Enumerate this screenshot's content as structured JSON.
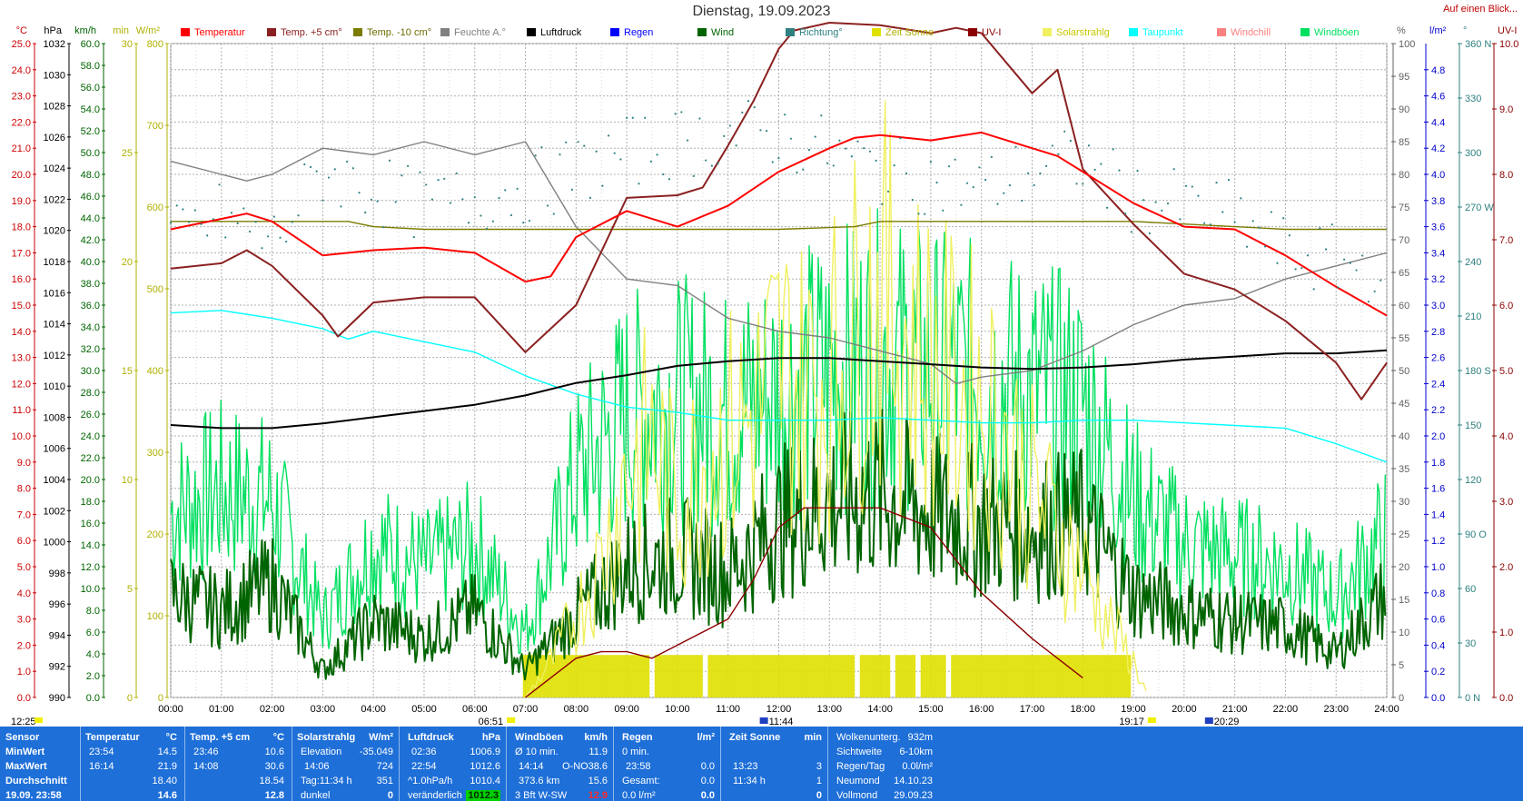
{
  "header": {
    "title": "Dienstag, 19.09.2023",
    "quick_link": "Auf einen Blick..."
  },
  "legend": [
    {
      "label": "Temperatur",
      "color": "#ff0000"
    },
    {
      "label": "Temp. +5 cm°",
      "color": "#8b2020"
    },
    {
      "label": "Temp. -10 cm°",
      "color": "#7b7b00"
    },
    {
      "label": "Feuchte A.°",
      "color": "#808080"
    },
    {
      "label": "Luftdruck",
      "color": "#000000"
    },
    {
      "label": "Regen",
      "color": "#0000ff"
    },
    {
      "label": "Wind",
      "color": "#006400"
    },
    {
      "label": "Richtung°",
      "color": "#2f8080"
    },
    {
      "label": "Zeit Sonne",
      "color": "#e0e000"
    },
    {
      "label": "UV-I",
      "color": "#8b0000"
    },
    {
      "label": "Solarstrahlg",
      "color": "#f0f060"
    },
    {
      "label": "Taupunkt",
      "color": "#00ffff"
    },
    {
      "label": "Windchill",
      "color": "#ff8080"
    },
    {
      "label": "Windböen",
      "color": "#00e060"
    }
  ],
  "axis_headers": {
    "temp": "°C",
    "pressure": "hPa",
    "wind": "km/h",
    "sunmin": "min",
    "solar": "W/m²",
    "percent": "%",
    "rain": "l/m²",
    "deg": "°",
    "uv": "UV-I"
  },
  "chart_data": {
    "type": "line",
    "x": [
      "00:00",
      "01:00",
      "02:00",
      "03:00",
      "04:00",
      "05:00",
      "06:00",
      "07:00",
      "08:00",
      "09:00",
      "10:00",
      "11:00",
      "12:00",
      "13:00",
      "14:00",
      "15:00",
      "16:00",
      "17:00",
      "18:00",
      "19:00",
      "20:00",
      "21:00",
      "22:00",
      "23:00",
      "24:00"
    ],
    "xlim": [
      0,
      24
    ],
    "axes": {
      "temp": {
        "range": [
          0,
          25
        ],
        "ticks": [
          "0.0",
          "1.0",
          "2.0",
          "3.0",
          "4.0",
          "5.0",
          "6.0",
          "7.0",
          "8.0",
          "9.0",
          "10.0",
          "11.0",
          "12.0",
          "13.0",
          "14.0",
          "15.0",
          "16.0",
          "17.0",
          "18.0",
          "19.0",
          "20.0",
          "21.0",
          "22.0",
          "23.0",
          "24.0",
          "25.0"
        ]
      },
      "pressure": {
        "range": [
          990,
          1032
        ],
        "ticks": [
          "990",
          "992",
          "994",
          "996",
          "998",
          "1000",
          "1002",
          "1004",
          "1006",
          "1008",
          "1010",
          "1012",
          "1014",
          "1016",
          "1018",
          "1020",
          "1022",
          "1024",
          "1026",
          "1028",
          "1030",
          "1032"
        ]
      },
      "wind": {
        "range": [
          0,
          60
        ],
        "ticks": [
          "0.0",
          "2.0",
          "4.0",
          "6.0",
          "8.0",
          "10.0",
          "12.0",
          "14.0",
          "16.0",
          "18.0",
          "20.0",
          "22.0",
          "24.0",
          "26.0",
          "28.0",
          "30.0",
          "32.0",
          "34.0",
          "36.0",
          "38.0",
          "40.0",
          "42.0",
          "44.0",
          "46.0",
          "48.0",
          "50.0",
          "52.0",
          "54.0",
          "56.0",
          "58.0",
          "60.0"
        ]
      },
      "sunmin": {
        "range": [
          0,
          30
        ],
        "ticks": [
          "0",
          "5",
          "10",
          "15",
          "20",
          "25",
          "30"
        ]
      },
      "solar": {
        "range": [
          0,
          800
        ],
        "ticks": [
          "0",
          "100",
          "200",
          "300",
          "400",
          "500",
          "600",
          "700",
          "800"
        ]
      },
      "percent": {
        "range": [
          0,
          100
        ],
        "ticks": [
          "0",
          "5",
          "10",
          "15",
          "20",
          "25",
          "30",
          "35",
          "40",
          "45",
          "50",
          "55",
          "60",
          "65",
          "70",
          "75",
          "80",
          "85",
          "90",
          "95",
          "100"
        ]
      },
      "rain": {
        "range": [
          0,
          5
        ],
        "ticks": [
          "0.0",
          "0.2",
          "0.4",
          "0.6",
          "0.8",
          "1.0",
          "1.2",
          "1.4",
          "1.6",
          "1.8",
          "2.0",
          "2.2",
          "2.4",
          "2.6",
          "2.8",
          "3.0",
          "3.2",
          "3.4",
          "3.6",
          "3.8",
          "4.0",
          "4.2",
          "4.4",
          "4.6",
          "4.8"
        ]
      },
      "deg": {
        "range": [
          0,
          360
        ],
        "ticks": [
          "0 N",
          "30",
          "60",
          "90 O",
          "120",
          "150",
          "180 S",
          "210",
          "240",
          "270 W",
          "300",
          "330",
          "360 N"
        ]
      },
      "uv": {
        "range": [
          0,
          10
        ],
        "ticks": [
          "0.0",
          "1.0",
          "2.0",
          "3.0",
          "4.0",
          "5.0",
          "6.0",
          "7.0",
          "8.0",
          "9.0",
          "10.0"
        ]
      }
    },
    "series": [
      {
        "name": "Temperatur",
        "axis": "temp",
        "color": "#ff0000",
        "t": [
          0,
          1,
          1.5,
          2,
          3,
          4,
          5,
          6,
          7,
          7.5,
          8,
          9,
          10,
          11,
          12,
          13,
          13.5,
          14,
          15,
          16,
          17,
          17.5,
          18,
          19,
          20,
          21,
          22,
          23,
          24
        ],
        "v": [
          17.9,
          18.3,
          18.5,
          18.2,
          16.9,
          17.1,
          17.2,
          17.0,
          15.9,
          16.1,
          17.6,
          18.6,
          18.0,
          18.8,
          20.1,
          21.0,
          21.4,
          21.5,
          21.3,
          21.6,
          21.0,
          20.7,
          20.1,
          18.9,
          18.0,
          17.9,
          16.9,
          15.7,
          14.6
        ]
      },
      {
        "name": "Temp. +5 cm°",
        "axis": "temp",
        "color": "#8b2020",
        "t": [
          0,
          1,
          1.5,
          2,
          3,
          3.3,
          4,
          5,
          6,
          7,
          8,
          9,
          10,
          10.5,
          11,
          11.5,
          12,
          12.3,
          13,
          14,
          15,
          15.5,
          16,
          17,
          17.5,
          18,
          19,
          20,
          21,
          22,
          23,
          23.5,
          24
        ],
        "v": [
          16.4,
          16.6,
          17.1,
          16.5,
          14.6,
          13.8,
          15.1,
          15.3,
          15.3,
          13.2,
          15.0,
          19.1,
          19.2,
          19.5,
          21.1,
          22.8,
          24.8,
          25.5,
          25.8,
          25.7,
          25.4,
          25.6,
          25.4,
          23.1,
          24.0,
          20.2,
          18.1,
          16.2,
          15.6,
          14.4,
          12.8,
          11.4,
          12.8
        ]
      },
      {
        "name": "Temp. -10 cm°",
        "axis": "temp",
        "color": "#7b7b00",
        "t": [
          0,
          3.5,
          4,
          5,
          6,
          12,
          13.5,
          14,
          17,
          19,
          20,
          22,
          24
        ],
        "v": [
          18.2,
          18.2,
          18.0,
          17.9,
          17.9,
          17.9,
          18.0,
          18.2,
          18.2,
          18.2,
          18.1,
          17.9,
          17.9
        ]
      },
      {
        "name": "Feuchte A.°",
        "axis": "percent",
        "color": "#808080",
        "t": [
          0,
          1,
          1.5,
          2,
          3,
          4,
          5,
          6,
          7,
          8,
          9,
          10,
          11,
          12,
          13,
          14,
          15,
          15.5,
          16,
          17,
          18,
          19,
          20,
          21,
          22,
          23,
          24
        ],
        "v": [
          82,
          80,
          79,
          80,
          84,
          83,
          85,
          83,
          85,
          72,
          64,
          63,
          58,
          56,
          55,
          53,
          51,
          48,
          49,
          50,
          53,
          57,
          60,
          61,
          64,
          66,
          68
        ]
      },
      {
        "name": "Luftdruck",
        "axis": "pressure",
        "color": "#000000",
        "t": [
          0,
          1,
          2,
          3,
          4,
          5,
          6,
          7,
          8,
          9,
          10,
          11,
          12,
          13,
          14,
          15,
          16,
          17,
          18,
          19,
          20,
          21,
          22,
          23,
          24
        ],
        "v": [
          1007.5,
          1007.3,
          1007.3,
          1007.6,
          1008.0,
          1008.4,
          1008.8,
          1009.4,
          1010.2,
          1010.7,
          1011.3,
          1011.6,
          1011.8,
          1011.8,
          1011.6,
          1011.4,
          1011.2,
          1011.1,
          1011.2,
          1011.4,
          1011.7,
          1011.9,
          1012.1,
          1012.1,
          1012.3
        ]
      },
      {
        "name": "Taupunkt",
        "axis": "temp",
        "color": "#00ffff",
        "t": [
          0,
          1,
          2,
          3,
          3.5,
          4,
          5,
          6,
          7,
          8,
          9,
          10,
          11,
          12,
          13,
          14,
          15,
          16,
          17,
          18,
          19,
          20,
          21,
          22,
          23,
          24
        ],
        "v": [
          14.7,
          14.8,
          14.5,
          14.1,
          13.7,
          14.0,
          13.6,
          13.2,
          12.3,
          11.6,
          11.1,
          10.9,
          10.6,
          10.6,
          10.6,
          10.7,
          10.6,
          10.5,
          10.5,
          10.6,
          10.6,
          10.5,
          10.4,
          10.3,
          9.7,
          9.0
        ]
      },
      {
        "name": "Wind",
        "axis": "wind",
        "color": "#006400",
        "t": [
          0,
          1,
          2,
          3,
          4,
          5,
          6,
          7,
          8,
          9,
          10,
          11,
          12,
          13,
          14,
          15,
          16,
          17,
          18,
          19,
          20,
          21,
          22,
          23,
          24
        ],
        "v": [
          9.5,
          8.0,
          10.5,
          2.5,
          7.0,
          5.5,
          8.0,
          2.5,
          7.5,
          12.0,
          13.0,
          11.5,
          16.0,
          18.0,
          18.5,
          17.0,
          16.0,
          15.5,
          16.0,
          9.5,
          8.0,
          7.0,
          6.5,
          4.0,
          9.5
        ]
      },
      {
        "name": "Windböen",
        "axis": "wind",
        "color": "#00e060",
        "t": [
          0,
          1,
          2,
          3,
          4,
          5,
          6,
          7,
          8,
          9,
          10,
          11,
          12,
          13,
          14,
          15,
          16,
          17,
          18,
          19,
          20,
          21,
          22,
          23,
          24
        ],
        "v": [
          17.0,
          19.0,
          18.0,
          7.0,
          14.0,
          12.0,
          14.0,
          6.0,
          20.0,
          26.0,
          27.0,
          26.0,
          28.0,
          30.0,
          31.0,
          30.0,
          29.0,
          28.0,
          27.0,
          18.0,
          14.0,
          13.0,
          12.0,
          9.0,
          15.0
        ]
      },
      {
        "name": "Solarstrahlg",
        "axis": "solar",
        "color": "#f0f060",
        "t": [
          7,
          7.5,
          8,
          8.5,
          9,
          9.5,
          10,
          10.5,
          11,
          11.5,
          12,
          12.5,
          13,
          13.5,
          14,
          14.5,
          15,
          15.5,
          16,
          16.5,
          17,
          17.5,
          18,
          18.5,
          19,
          19.3
        ],
        "v": [
          0,
          60,
          140,
          230,
          380,
          430,
          320,
          400,
          440,
          470,
          560,
          520,
          540,
          620,
          680,
          610,
          560,
          520,
          500,
          430,
          350,
          280,
          220,
          130,
          60,
          0
        ]
      },
      {
        "name": "UV-I",
        "axis": "uv",
        "color": "#8b0000",
        "t": [
          7,
          8,
          8.5,
          9,
          9.5,
          10,
          11,
          11.5,
          12,
          12.5,
          13,
          13.5,
          14,
          15,
          15.5,
          16,
          17,
          17.5,
          18
        ],
        "v": [
          0,
          0.6,
          0.7,
          0.7,
          0.6,
          0.8,
          1.2,
          1.8,
          2.6,
          2.9,
          2.9,
          2.9,
          2.9,
          2.6,
          2.1,
          1.6,
          0.9,
          0.6,
          0.3
        ]
      },
      {
        "name": "Zeit Sonne",
        "axis": "sunmin",
        "color": "#e0e000",
        "segments": [
          [
            6.95,
            9.45
          ],
          [
            9.55,
            10.5
          ],
          [
            10.6,
            13.5
          ],
          [
            13.6,
            14.2
          ],
          [
            14.3,
            14.7
          ],
          [
            14.8,
            15.3
          ],
          [
            15.4,
            18.95
          ]
        ],
        "level": 1.95
      }
    ],
    "direction_points": {
      "axis": "deg",
      "color": "#2f8080",
      "t": [
        0,
        1,
        2,
        3,
        4,
        5,
        6,
        7,
        8,
        9,
        10,
        11,
        12,
        13,
        14,
        15,
        16,
        17,
        18,
        19,
        20,
        21,
        22,
        23,
        24
      ],
      "v": [
        250,
        265,
        250,
        290,
        280,
        270,
        275,
        280,
        290,
        300,
        305,
        310,
        310,
        300,
        290,
        285,
        280,
        290,
        295,
        275,
        270,
        265,
        245,
        240,
        235
      ]
    },
    "markers": {
      "now": "12:25",
      "sunrise": "06:51",
      "noon": "11:44",
      "sunset": "19:17",
      "moon": "20:29"
    }
  },
  "footer": {
    "sensor": {
      "header": "Sensor",
      "rows": [
        "MinWert",
        "MaxWert",
        "Durchschnitt",
        "19.09. 23:58"
      ]
    },
    "temperatur": {
      "header": "Temperatur",
      "unit": "°C",
      "rows": [
        [
          "23:54",
          "14.5"
        ],
        [
          "16:14",
          "21.9"
        ],
        [
          "",
          "18.40"
        ],
        [
          "",
          "14.6"
        ]
      ]
    },
    "temp5": {
      "header": "Temp. +5 cm",
      "unit": "°C",
      "rows": [
        [
          "23:46",
          "10.6"
        ],
        [
          "14:08",
          "30.6"
        ],
        [
          "",
          "18.54"
        ],
        [
          "",
          "12.8"
        ]
      ]
    },
    "solar": {
      "header": "Solarstrahlg",
      "unit": "W/m²",
      "rows": [
        [
          "Elevation",
          "-35.049"
        ],
        [
          "14:06",
          "724"
        ],
        [
          "Tag:11:34 h",
          "351"
        ],
        [
          "dunkel",
          "0"
        ]
      ]
    },
    "druck": {
      "header": "Luftdruck",
      "unit": "hPa",
      "rows": [
        [
          "02:36",
          "1006.9"
        ],
        [
          "22:54",
          "1012.6"
        ],
        [
          "^1.0hPa/h",
          "1010.4"
        ],
        [
          "veränderlich",
          "1012.3"
        ]
      ]
    },
    "boeen": {
      "header": "Windböen",
      "unit": "km/h",
      "rows": [
        [
          "Ø 10 min.",
          "",
          "11.9"
        ],
        [
          "14:14",
          "O-NO",
          "38.6"
        ],
        [
          "373.6 km",
          "",
          "15.6"
        ],
        [
          "3 Bft W-SW",
          "",
          "12.9"
        ]
      ]
    },
    "regen": {
      "header": "Regen",
      "unit": "l/m²",
      "rows": [
        [
          "0 min.",
          ""
        ],
        [
          "23:58",
          "0.0"
        ],
        [
          "Gesamt:",
          "0.0"
        ],
        [
          "0.0 l/m²",
          "0.0"
        ]
      ]
    },
    "sonne": {
      "header": "Zeit Sonne",
      "unit": "min",
      "rows": [
        [
          "",
          ""
        ],
        [
          "13:23",
          "3"
        ],
        [
          "11:34 h",
          "1"
        ],
        [
          "",
          "0"
        ]
      ]
    },
    "info": {
      "rows": [
        [
          "Wolkenunterg.",
          "932m"
        ],
        [
          "Sichtweite",
          "6-10km"
        ],
        [
          "Regen/Tag",
          "0.0l/m²"
        ],
        [
          "Neumond",
          "14.10.23"
        ],
        [
          "Vollmond",
          "29.09.23"
        ]
      ]
    }
  }
}
